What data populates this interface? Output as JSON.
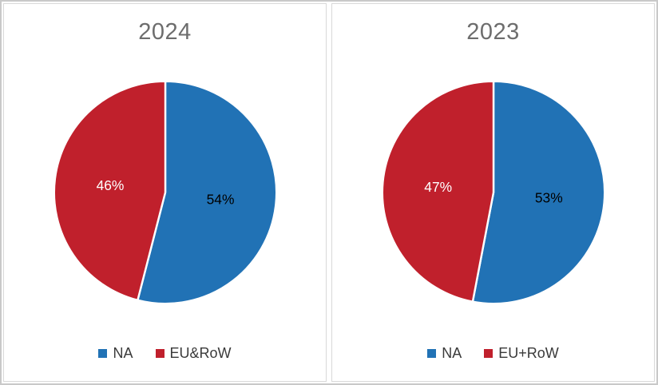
{
  "colors": {
    "na_blue": "#2172B5",
    "eu_red": "#C0202C",
    "title_gray": "#6d6d6d",
    "legend_text": "#3a3a3a"
  },
  "chart_data": [
    {
      "type": "pie",
      "title": "2024",
      "labels": [
        "NA",
        "EU&RoW"
      ],
      "values": [
        54,
        46
      ],
      "value_labels": [
        "54%",
        "46%"
      ],
      "colors": [
        "#2172B5",
        "#C0202C"
      ],
      "label_colors": [
        "#000000",
        "#ffffff"
      ],
      "start_angle_deg": 0,
      "direction": "clockwise",
      "legend_position": "bottom"
    },
    {
      "type": "pie",
      "title": "2023",
      "labels": [
        "NA",
        "EU+RoW"
      ],
      "values": [
        53,
        47
      ],
      "value_labels": [
        "53%",
        "47%"
      ],
      "colors": [
        "#2172B5",
        "#C0202C"
      ],
      "label_colors": [
        "#000000",
        "#ffffff"
      ],
      "start_angle_deg": 0,
      "direction": "clockwise",
      "legend_position": "bottom"
    }
  ]
}
